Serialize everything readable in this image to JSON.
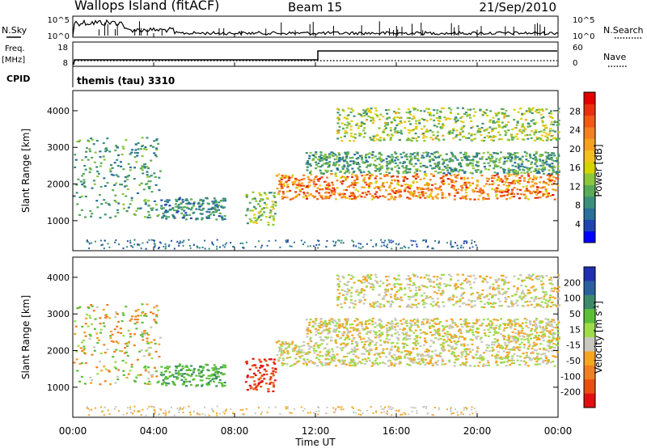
{
  "header": {
    "station": "Wallops Island (fitACF)",
    "beam": "Beam 15",
    "date": "21/Sep/2010"
  },
  "top_panels": {
    "nsky_label": "N.Sky",
    "nsearch_label": "N.Search",
    "count_ticks": [
      "10^5",
      "10^0"
    ],
    "freq_label": "Freq.",
    "freq_unit": "[MHz]",
    "freq_ticks": [
      "18",
      "8"
    ],
    "nave_label": "Nave",
    "nave_ticks": [
      "60",
      "0"
    ],
    "cpid_label": "CPID",
    "cpid_value": "themis (tau) 3310"
  },
  "chart_data": [
    {
      "type": "heatmap",
      "title": "",
      "xlabel": "Time UT",
      "ylabel": "Slant Range [km]",
      "x_ticks": [
        "00:00",
        "04:00",
        "08:00",
        "12:00",
        "16:00",
        "20:00",
        "00:00"
      ],
      "xlim_hours": [
        0,
        24
      ],
      "y_ticks": [
        1000,
        2000,
        3000,
        4000
      ],
      "ylim": [
        180,
        4550
      ],
      "colorbar": {
        "label": "Power [dB]",
        "ticks": [
          4,
          8,
          12,
          16,
          20,
          24,
          28
        ],
        "range": [
          0,
          32
        ],
        "colors": [
          "#0000ff",
          "#1e44b0",
          "#2a6f9a",
          "#3b8f7a",
          "#5aaa5a",
          "#8cc63a",
          "#d4d400",
          "#f4c020",
          "#f7a020",
          "#f48020",
          "#f05a14",
          "#e83010",
          "#e00000"
        ]
      },
      "echo_regions": [
        {
          "t": [
            0.0,
            4.3
          ],
          "range": [
            1100,
            3300
          ],
          "power_db": [
            6,
            14
          ]
        },
        {
          "t": [
            4.3,
            7.5
          ],
          "range": [
            1050,
            1650
          ],
          "power_db": [
            4,
            12
          ]
        },
        {
          "t": [
            8.5,
            10.0
          ],
          "range": [
            900,
            1800
          ],
          "power_db": [
            8,
            18
          ]
        },
        {
          "t": [
            10.0,
            24.0
          ],
          "range": [
            1600,
            2300
          ],
          "power_db": [
            16,
            30
          ]
        },
        {
          "t": [
            11.5,
            24.0
          ],
          "range": [
            2300,
            2900
          ],
          "power_db": [
            6,
            14
          ]
        },
        {
          "t": [
            13.0,
            24.0
          ],
          "range": [
            3200,
            4100
          ],
          "power_db": [
            8,
            20
          ]
        }
      ]
    },
    {
      "type": "heatmap",
      "title": "",
      "xlabel": "Time UT",
      "ylabel": "Slant Range [km]",
      "x_ticks": [
        "00:00",
        "04:00",
        "08:00",
        "12:00",
        "16:00",
        "20:00",
        "00:00"
      ],
      "xlim_hours": [
        0,
        24
      ],
      "y_ticks": [
        1000,
        2000,
        3000,
        4000
      ],
      "ylim": [
        180,
        4550
      ],
      "colorbar": {
        "label": "Velocity [m s^-1]",
        "ticks": [
          200,
          100,
          50,
          15,
          -15,
          -50,
          -100,
          -200
        ],
        "colors": [
          "#2030b0",
          "#2c5f9e",
          "#3d8a6a",
          "#5bbf3a",
          "#9edc4a",
          "#c8c8c0",
          "#f5a623",
          "#f08020",
          "#e85010",
          "#e01010"
        ]
      },
      "echo_regions": [
        {
          "t": [
            0.0,
            4.3
          ],
          "range": [
            1100,
            3300
          ],
          "velocity": [
            -40,
            40
          ]
        },
        {
          "t": [
            4.3,
            7.5
          ],
          "range": [
            1050,
            1650
          ],
          "velocity": [
            20,
            60
          ]
        },
        {
          "t": [
            8.5,
            10.0
          ],
          "range": [
            900,
            1800
          ],
          "velocity": [
            -150,
            -50
          ]
        },
        {
          "t": [
            10.0,
            24.0
          ],
          "range": [
            1600,
            2300
          ],
          "velocity": [
            -15,
            15
          ]
        },
        {
          "t": [
            11.5,
            24.0
          ],
          "range": [
            2300,
            2900
          ],
          "velocity": [
            -15,
            15
          ]
        },
        {
          "t": [
            13.0,
            24.0
          ],
          "range": [
            3200,
            4100
          ],
          "velocity": [
            -15,
            15
          ]
        }
      ]
    }
  ]
}
